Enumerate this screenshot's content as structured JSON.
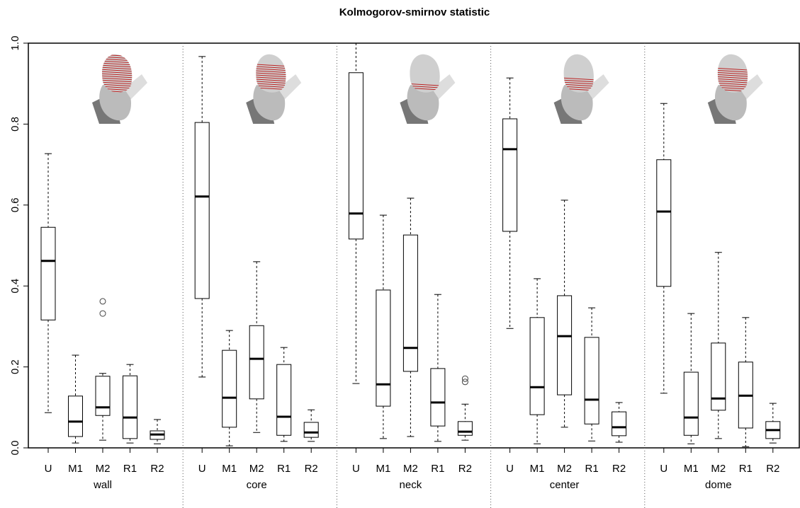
{
  "chart_data": {
    "type": "box",
    "title": "Kolmogorov-smirnov statistic",
    "ylim": [
      0,
      1
    ],
    "yticks": [
      {
        "value": 0,
        "label": "0.0"
      },
      0.2,
      0.4,
      0.6,
      0.8,
      {
        "value": 1,
        "label": "1.0"
      }
    ],
    "groups": [
      {
        "name": "wall",
        "categories": [
          "U",
          "M1",
          "M2",
          "R1",
          "R2"
        ],
        "boxes": [
          {
            "min": 0.087,
            "q1": 0.316,
            "median": 0.462,
            "q3": 0.545,
            "max": 0.727
          },
          {
            "min": 0.012,
            "q1": 0.028,
            "median": 0.065,
            "q3": 0.128,
            "max": 0.229
          },
          {
            "min": 0.019,
            "q1": 0.08,
            "median": 0.1,
            "q3": 0.177,
            "max": 0.184,
            "outliers": [
              0.362,
              0.332
            ]
          },
          {
            "min": 0.012,
            "q1": 0.023,
            "median": 0.075,
            "q3": 0.178,
            "max": 0.206
          },
          {
            "min": 0.01,
            "q1": 0.021,
            "median": 0.033,
            "q3": 0.042,
            "max": 0.07
          }
        ]
      },
      {
        "name": "core",
        "categories": [
          "U",
          "M1",
          "M2",
          "R1",
          "R2"
        ],
        "boxes": [
          {
            "min": 0.175,
            "q1": 0.369,
            "median": 0.621,
            "q3": 0.804,
            "max": 0.967
          },
          {
            "min": 0.005,
            "q1": 0.051,
            "median": 0.124,
            "q3": 0.241,
            "max": 0.29
          },
          {
            "min": 0.038,
            "q1": 0.121,
            "median": 0.22,
            "q3": 0.302,
            "max": 0.46
          },
          {
            "min": 0.016,
            "q1": 0.031,
            "median": 0.077,
            "q3": 0.206,
            "max": 0.248
          },
          {
            "min": 0.016,
            "q1": 0.026,
            "median": 0.038,
            "q3": 0.063,
            "max": 0.094
          }
        ]
      },
      {
        "name": "neck",
        "categories": [
          "U",
          "M1",
          "M2",
          "R1",
          "R2"
        ],
        "boxes": [
          {
            "min": 0.159,
            "q1": 0.516,
            "median": 0.579,
            "q3": 0.927,
            "max": 1.0
          },
          {
            "min": 0.023,
            "q1": 0.103,
            "median": 0.157,
            "q3": 0.39,
            "max": 0.575
          },
          {
            "min": 0.028,
            "q1": 0.189,
            "median": 0.247,
            "q3": 0.526,
            "max": 0.617
          },
          {
            "min": 0.016,
            "q1": 0.054,
            "median": 0.112,
            "q3": 0.196,
            "max": 0.379
          },
          {
            "min": 0.019,
            "q1": 0.031,
            "median": 0.04,
            "q3": 0.065,
            "max": 0.108,
            "outliers": [
              0.171,
              0.163
            ]
          }
        ]
      },
      {
        "name": "center",
        "categories": [
          "U",
          "M1",
          "M2",
          "R1",
          "R2"
        ],
        "boxes": [
          {
            "min": 0.295,
            "q1": 0.535,
            "median": 0.738,
            "q3": 0.813,
            "max": 0.914
          },
          {
            "min": 0.01,
            "q1": 0.082,
            "median": 0.15,
            "q3": 0.322,
            "max": 0.418
          },
          {
            "min": 0.051,
            "q1": 0.131,
            "median": 0.276,
            "q3": 0.376,
            "max": 0.612
          },
          {
            "min": 0.017,
            "q1": 0.059,
            "median": 0.119,
            "q3": 0.273,
            "max": 0.346
          },
          {
            "min": 0.014,
            "q1": 0.03,
            "median": 0.051,
            "q3": 0.089,
            "max": 0.112
          }
        ]
      },
      {
        "name": "dome",
        "categories": [
          "U",
          "M1",
          "M2",
          "R1",
          "R2"
        ],
        "boxes": [
          {
            "min": 0.135,
            "q1": 0.399,
            "median": 0.584,
            "q3": 0.712,
            "max": 0.851
          },
          {
            "min": 0.01,
            "q1": 0.031,
            "median": 0.075,
            "q3": 0.187,
            "max": 0.332
          },
          {
            "min": 0.023,
            "q1": 0.093,
            "median": 0.122,
            "q3": 0.259,
            "max": 0.483
          },
          {
            "min": 0.003,
            "q1": 0.049,
            "median": 0.129,
            "q3": 0.212,
            "max": 0.322
          },
          {
            "min": 0.012,
            "q1": 0.023,
            "median": 0.044,
            "q3": 0.065,
            "max": 0.11
          }
        ]
      }
    ]
  }
}
